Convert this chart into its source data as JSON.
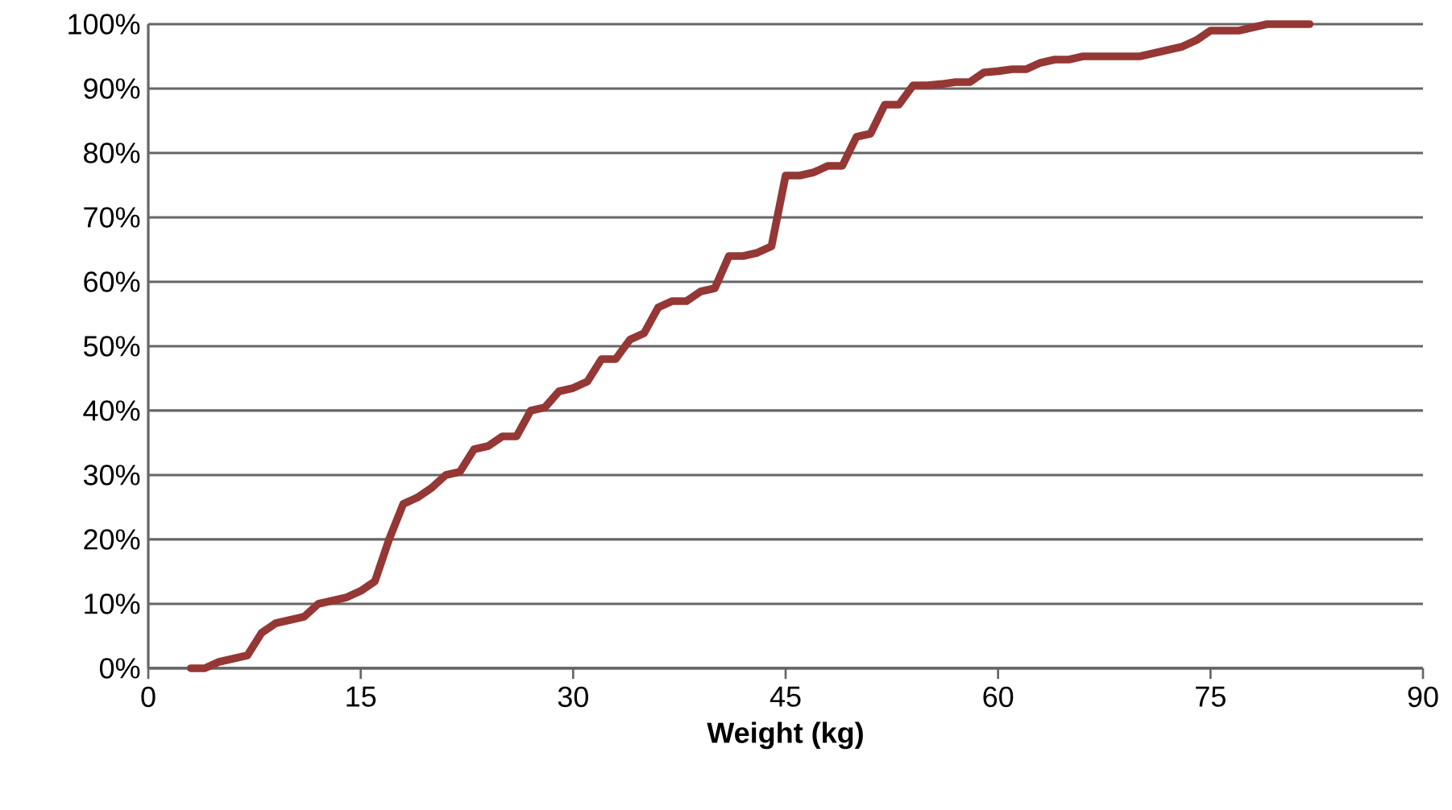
{
  "chart_data": {
    "type": "line",
    "xlabel": "Weight (kg)",
    "grid": "y",
    "line_style": "solid",
    "marker": "none",
    "xlim": [
      0,
      90
    ],
    "xticks": [
      0,
      15,
      30,
      45,
      60,
      75,
      90
    ],
    "ylim": [
      0,
      100
    ],
    "yticks": [
      {
        "value": 0,
        "label": "0%"
      },
      {
        "value": 10,
        "label": "10%"
      },
      {
        "value": 20,
        "label": "20%"
      },
      {
        "value": 30,
        "label": "30%"
      },
      {
        "value": 40,
        "label": "40%"
      },
      {
        "value": 50,
        "label": "50%"
      },
      {
        "value": 60,
        "label": "60%"
      },
      {
        "value": 70,
        "label": "70%"
      },
      {
        "value": 80,
        "label": "80%"
      },
      {
        "value": 90,
        "label": "90%"
      },
      {
        "value": 100,
        "label": "100%"
      }
    ],
    "series": [
      {
        "color": "#953735",
        "x": [
          3,
          4,
          5,
          6,
          7,
          8,
          9,
          10,
          11,
          12,
          13,
          14,
          15,
          16,
          17,
          18,
          19,
          20,
          21,
          22,
          23,
          24,
          25,
          26,
          27,
          28,
          29,
          30,
          31,
          32,
          33,
          34,
          35,
          36,
          37,
          38,
          39,
          40,
          41,
          42,
          43,
          44,
          45,
          46,
          47,
          48,
          49,
          50,
          51,
          52,
          53,
          54,
          55,
          56,
          57,
          58,
          59,
          60,
          61,
          62,
          63,
          64,
          65,
          66,
          70,
          71,
          72,
          73,
          74,
          75,
          76,
          77,
          78,
          79,
          82
        ],
        "values": [
          0,
          0,
          1,
          1.5,
          2,
          5.5,
          7,
          7.5,
          8,
          10,
          10.5,
          11,
          12,
          13.5,
          20,
          25.5,
          26.5,
          28,
          30,
          30.5,
          34,
          34.5,
          36,
          36,
          40,
          40.5,
          43,
          43.5,
          44.5,
          48,
          48,
          51,
          52,
          56,
          57,
          57,
          58.5,
          59,
          64,
          64,
          64.5,
          65.5,
          76.5,
          76.5,
          77,
          78,
          78,
          82.5,
          83,
          87.5,
          87.5,
          90.5,
          90.5,
          90.7,
          91,
          91,
          92.5,
          92.7,
          93,
          93,
          94,
          94.5,
          94.5,
          95,
          95,
          95.5,
          96,
          96.5,
          97.5,
          99,
          99,
          99,
          99.5,
          100,
          100
        ]
      }
    ]
  }
}
